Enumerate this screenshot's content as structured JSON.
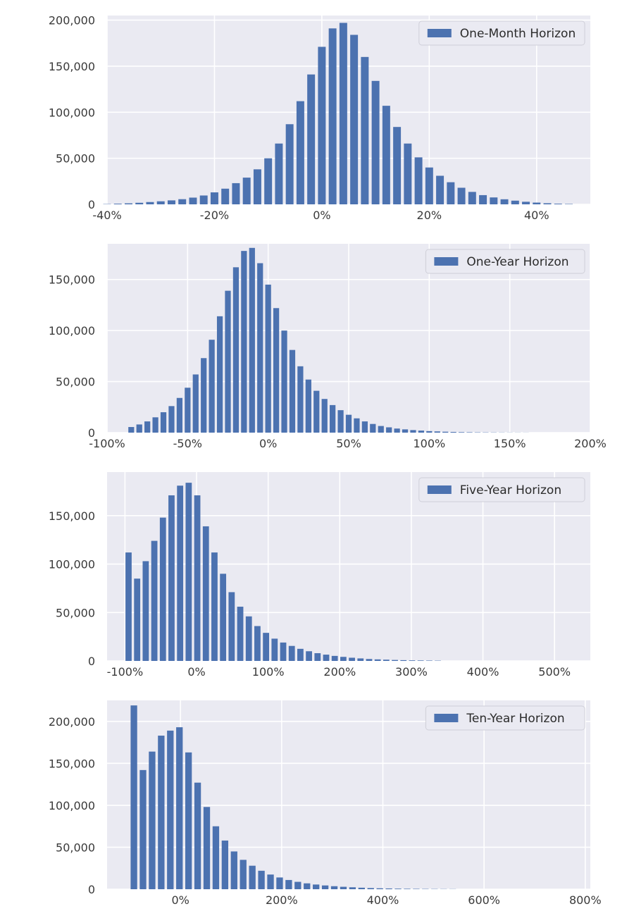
{
  "chart_data": [
    {
      "type": "bar",
      "legend": "One-Month Horizon",
      "legend_position": "top-right",
      "grid": true,
      "xlim": [
        -40,
        50
      ],
      "ylim": [
        0,
        205000
      ],
      "xticks": [
        -40,
        -20,
        0,
        20,
        40
      ],
      "xtick_labels": [
        "-40%",
        "-20%",
        "0%",
        "20%",
        "40%"
      ],
      "yticks": [
        0,
        50000,
        100000,
        150000,
        200000
      ],
      "ytick_labels": [
        "0",
        "50,000",
        "100,000",
        "150,000",
        "200,000"
      ],
      "bar_color": "#4c72b0",
      "x": [
        -40,
        -38,
        -36,
        -34,
        -32,
        -30,
        -28,
        -26,
        -24,
        -22,
        -20,
        -18,
        -16,
        -14,
        -12,
        -10,
        -8,
        -6,
        -4,
        -2,
        0,
        2,
        4,
        6,
        8,
        10,
        12,
        14,
        16,
        18,
        20,
        22,
        24,
        26,
        28,
        30,
        32,
        34,
        36,
        38,
        40,
        42,
        44,
        46
      ],
      "values": [
        300,
        700,
        1100,
        1700,
        2500,
        3300,
        4300,
        5600,
        7300,
        9600,
        13000,
        17000,
        23000,
        29000,
        38000,
        50000,
        66000,
        87000,
        112000,
        141000,
        171000,
        191000,
        197000,
        184000,
        160000,
        134000,
        107000,
        84000,
        66000,
        51000,
        40000,
        31000,
        24000,
        18000,
        13500,
        10000,
        7500,
        5500,
        4000,
        2800,
        1900,
        1200,
        700,
        400
      ]
    },
    {
      "type": "bar",
      "legend": "One-Year Horizon",
      "legend_position": "top-right",
      "grid": true,
      "xlim": [
        -100,
        200
      ],
      "ylim": [
        0,
        185000
      ],
      "xticks": [
        -100,
        -50,
        0,
        50,
        100,
        150,
        200
      ],
      "xtick_labels": [
        "-100%",
        "-50%",
        "0%",
        "50%",
        "100%",
        "150%",
        "200%"
      ],
      "yticks": [
        0,
        50000,
        100000,
        150000
      ],
      "ytick_labels": [
        "0",
        "50,000",
        "100,000",
        "150,000"
      ],
      "bar_color": "#4c72b0",
      "x": [
        -85,
        -80,
        -75,
        -70,
        -65,
        -60,
        -55,
        -50,
        -45,
        -40,
        -35,
        -30,
        -25,
        -20,
        -15,
        -10,
        -5,
        0,
        5,
        10,
        15,
        20,
        25,
        30,
        35,
        40,
        45,
        50,
        55,
        60,
        65,
        70,
        75,
        80,
        85,
        90,
        95,
        100,
        105,
        110,
        115,
        120,
        125,
        130,
        135,
        140,
        145,
        150,
        155,
        160
      ],
      "values": [
        5500,
        8000,
        11000,
        15000,
        20000,
        26000,
        34000,
        44000,
        57000,
        73000,
        91000,
        114000,
        139000,
        162000,
        178000,
        181000,
        166000,
        145000,
        122000,
        100000,
        81000,
        65000,
        52000,
        41000,
        33000,
        27000,
        22000,
        17500,
        14000,
        11000,
        8500,
        6500,
        5200,
        4000,
        3200,
        2500,
        2000,
        1500,
        1200,
        900,
        700,
        500,
        400,
        300,
        250,
        200,
        150,
        120,
        100,
        80
      ]
    },
    {
      "type": "bar",
      "legend": "Five-Year Horizon",
      "legend_position": "top-right",
      "grid": true,
      "xlim": [
        -125,
        550
      ],
      "ylim": [
        0,
        195000
      ],
      "xticks": [
        -100,
        0,
        100,
        200,
        300,
        400,
        500
      ],
      "xtick_labels": [
        "-100%",
        "0%",
        "100%",
        "200%",
        "300%",
        "400%",
        "500%"
      ],
      "yticks": [
        0,
        50000,
        100000,
        150000
      ],
      "ytick_labels": [
        "0",
        "50,000",
        "100,000",
        "150,000"
      ],
      "bar_color": "#4c72b0",
      "x": [
        -95,
        -83,
        -71,
        -59,
        -47,
        -35,
        -23,
        -11,
        1,
        13,
        25,
        37,
        49,
        61,
        73,
        85,
        97,
        109,
        121,
        133,
        145,
        157,
        169,
        181,
        193,
        205,
        217,
        229,
        241,
        253,
        265,
        277,
        289,
        301,
        313,
        325,
        337
      ],
      "values": [
        112000,
        85000,
        103000,
        124000,
        148000,
        171000,
        181000,
        184000,
        171000,
        139000,
        112000,
        90000,
        71000,
        56000,
        46000,
        36000,
        29000,
        23000,
        19000,
        15500,
        12500,
        10000,
        8000,
        6500,
        5200,
        4200,
        3300,
        2600,
        2000,
        1600,
        1300,
        1000,
        800,
        600,
        500,
        400,
        300
      ]
    },
    {
      "type": "bar",
      "legend": "Ten-Year Horizon",
      "legend_position": "top-right",
      "grid": true,
      "xlim": [
        -145,
        810
      ],
      "ylim": [
        0,
        225000
      ],
      "xticks": [
        0,
        200,
        400,
        600,
        800
      ],
      "xtick_labels": [
        "0%",
        "200%",
        "400%",
        "600%",
        "800%"
      ],
      "yticks": [
        0,
        50000,
        100000,
        150000,
        200000
      ],
      "ytick_labels": [
        "0",
        "50,000",
        "100,000",
        "150,000",
        "200,000"
      ],
      "bar_color": "#4c72b0",
      "x": [
        -92,
        -74,
        -56,
        -38,
        -20,
        -2,
        16,
        34,
        52,
        70,
        88,
        106,
        124,
        142,
        160,
        178,
        196,
        214,
        232,
        250,
        268,
        286,
        304,
        322,
        340,
        358,
        376,
        394,
        412,
        430,
        448,
        466,
        484,
        502,
        520,
        538
      ],
      "values": [
        219000,
        142000,
        164000,
        183000,
        189000,
        193000,
        163000,
        127000,
        98000,
        75000,
        58000,
        45000,
        35000,
        28000,
        22000,
        17500,
        14000,
        11000,
        8800,
        7000,
        5600,
        4500,
        3600,
        2900,
        2300,
        1800,
        1400,
        1100,
        900,
        700,
        550,
        450,
        350,
        280,
        220,
        180
      ]
    }
  ]
}
